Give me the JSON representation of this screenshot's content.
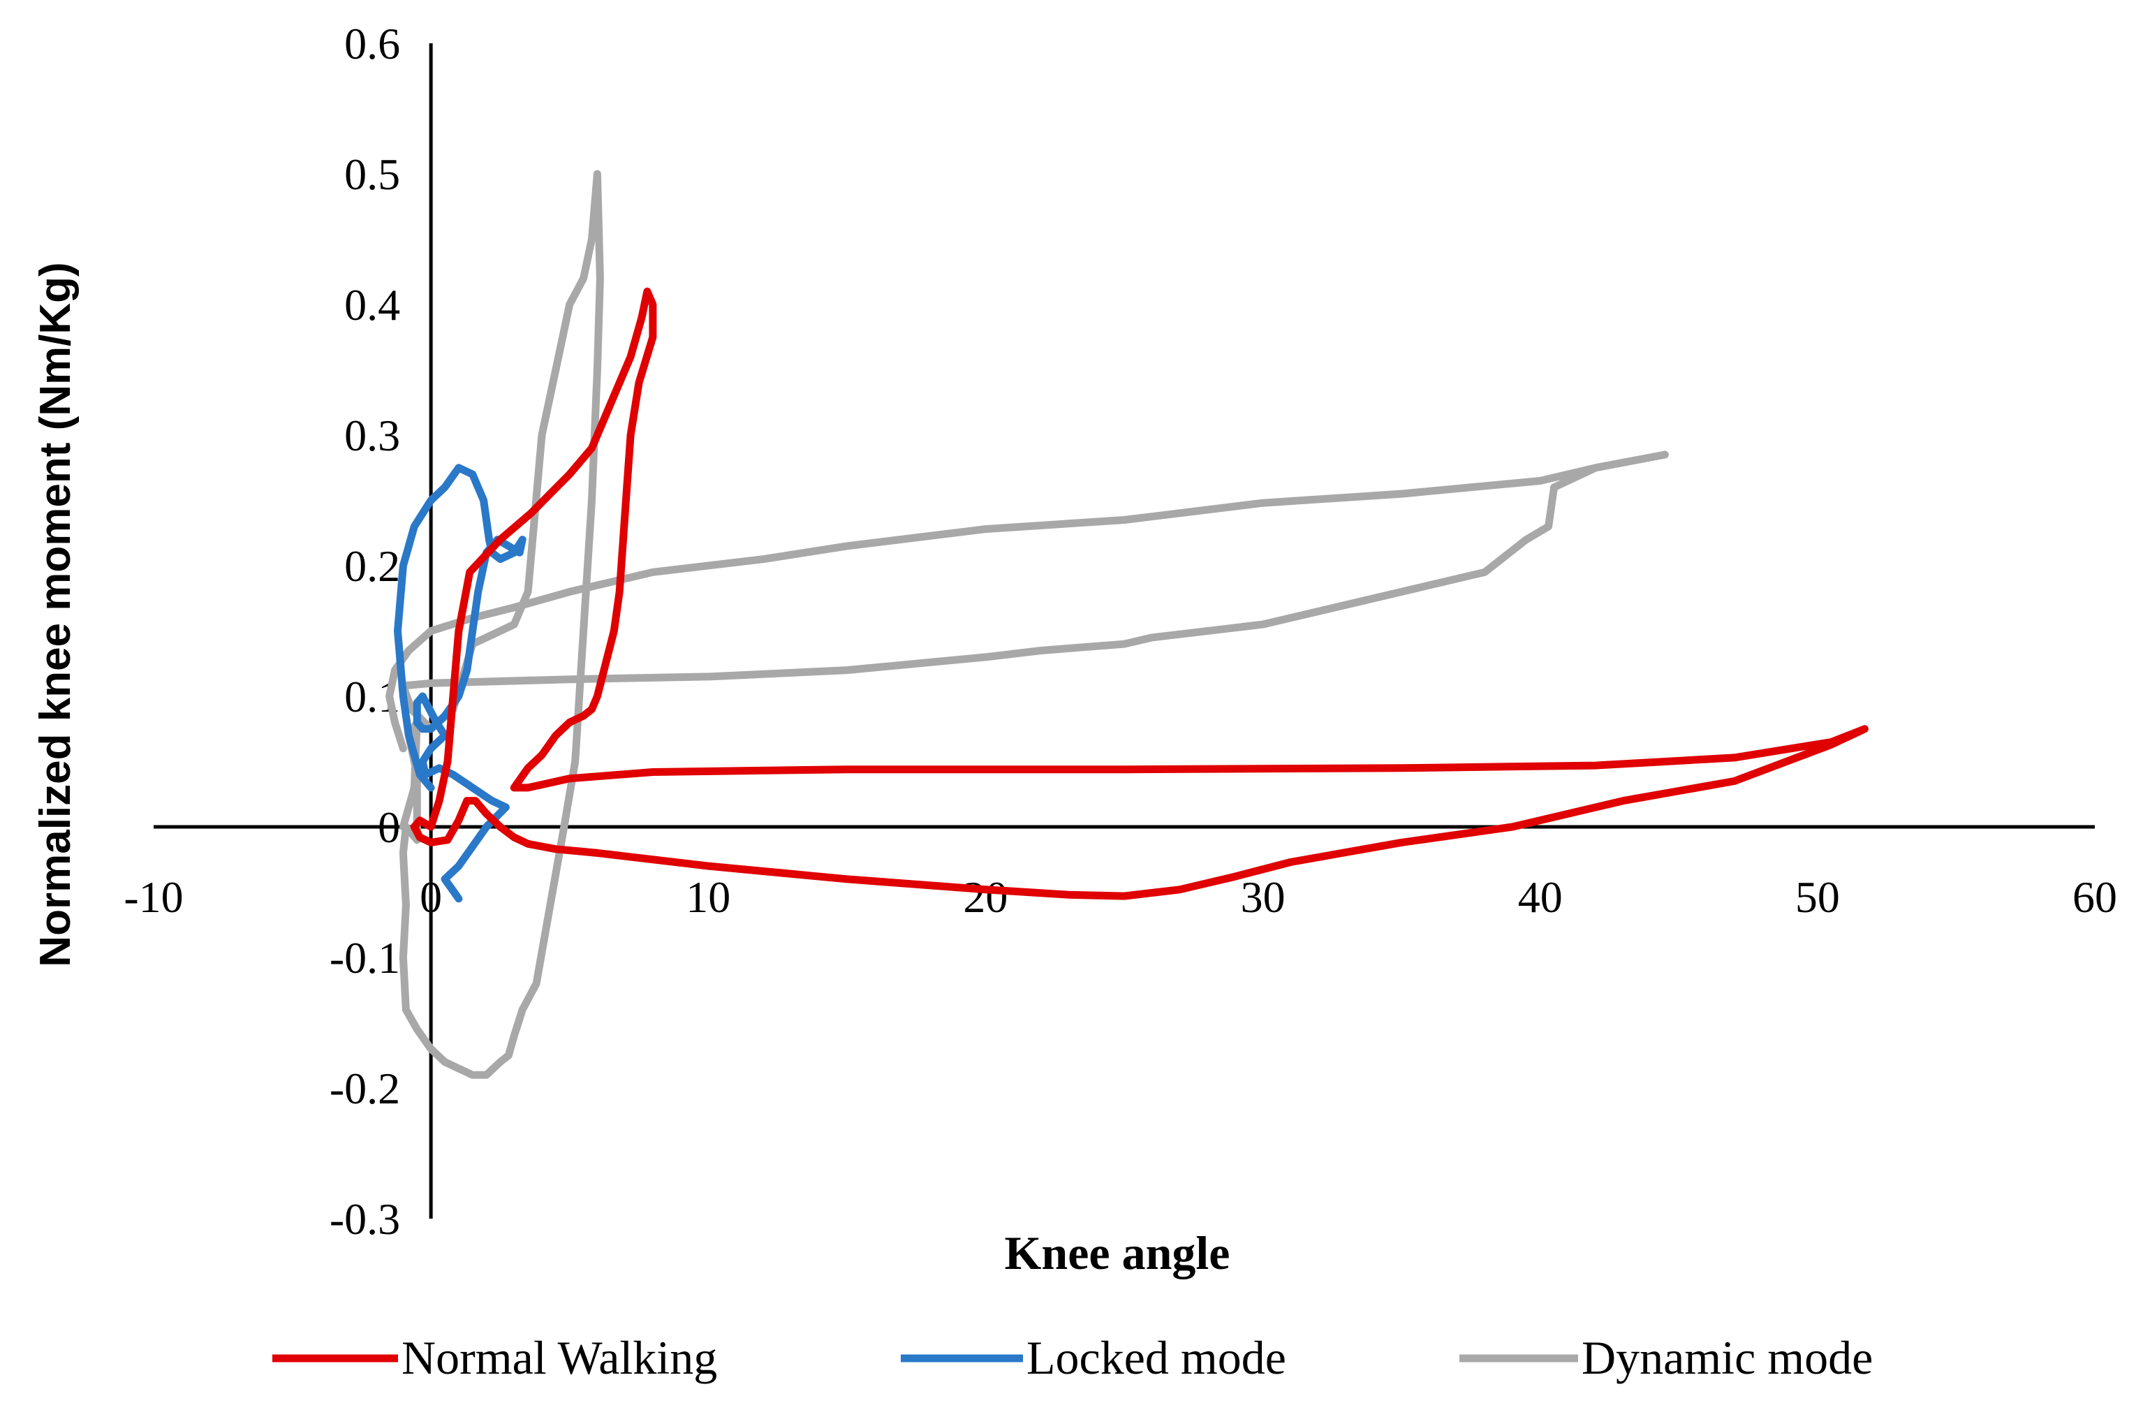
{
  "chart_data": {
    "type": "line",
    "title": "",
    "xlabel": "Knee angle",
    "ylabel": "Normalized knee moment (Nm/Kg)",
    "xlim": [
      -10,
      60
    ],
    "ylim": [
      -0.3,
      0.6
    ],
    "x_ticks": [
      "-10",
      "0",
      "10",
      "20",
      "30",
      "40",
      "50",
      "60"
    ],
    "y_ticks": [
      "-0.3",
      "-0.2",
      "-0.1",
      "0",
      "0.1",
      "0.2",
      "0.3",
      "0.4",
      "0.5",
      "0.6"
    ],
    "grid": false,
    "legend_position": "bottom",
    "series": [
      {
        "name": "Normal Walking",
        "color": "#e00000",
        "x": [
          0.0,
          0.3,
          0.6,
          0.8,
          1.0,
          1.4,
          2.5,
          3.6,
          4.3,
          5.0,
          5.8,
          6.5,
          7.2,
          7.6,
          7.8,
          8.0,
          8.0,
          7.5,
          7.2,
          7.0,
          6.8,
          6.6,
          6.0,
          5.8,
          5.5,
          5.0,
          4.5,
          4.0,
          3.5,
          3.0,
          3.5,
          5.0,
          8.0,
          15.0,
          25.0,
          35.0,
          42.0,
          47.0,
          50.5,
          51.7,
          50.5,
          47.0,
          43.0,
          39.0,
          35.0,
          31.0,
          29.0,
          27.0,
          25.0,
          23.0,
          20.0,
          15.0,
          10.0,
          6.0,
          4.5,
          3.5,
          3.0,
          2.5,
          2.0,
          1.6,
          1.3,
          1.0,
          0.6,
          0.0,
          -0.4,
          -0.6,
          -0.4,
          0.0
        ],
        "y": [
          0.0,
          0.02,
          0.05,
          0.1,
          0.15,
          0.195,
          0.22,
          0.24,
          0.255,
          0.27,
          0.29,
          0.325,
          0.36,
          0.39,
          0.41,
          0.4,
          0.375,
          0.34,
          0.3,
          0.24,
          0.18,
          0.15,
          0.1,
          0.09,
          0.085,
          0.08,
          0.07,
          0.055,
          0.045,
          0.03,
          0.03,
          0.037,
          0.042,
          0.044,
          0.044,
          0.045,
          0.047,
          0.053,
          0.065,
          0.075,
          0.063,
          0.035,
          0.02,
          0.0,
          -0.012,
          -0.027,
          -0.038,
          -0.048,
          -0.053,
          -0.052,
          -0.048,
          -0.04,
          -0.03,
          -0.02,
          -0.017,
          -0.013,
          -0.008,
          0.0,
          0.01,
          0.02,
          0.02,
          0.005,
          -0.01,
          -0.012,
          -0.008,
          0.0,
          0.005,
          0.0
        ]
      },
      {
        "name": "Locked mode",
        "color": "#2a78c8",
        "x": [
          0.0,
          -0.4,
          -0.8,
          -1.0,
          -1.2,
          -1.0,
          -0.6,
          0.0,
          0.5,
          1.0,
          1.5,
          1.9,
          2.1,
          2.2,
          2.5,
          3.0,
          3.3,
          3.2,
          2.8,
          2.4,
          2.0,
          1.7,
          1.5,
          1.3,
          1.0,
          0.5,
          0.0,
          -0.3,
          -0.5,
          -0.5,
          -0.3,
          0.2,
          0.5,
          0.0,
          -0.3,
          -0.2,
          0.3,
          0.8,
          1.5,
          2.2,
          2.7,
          2.0,
          1.0,
          0.5,
          1.0
        ],
        "y": [
          0.03,
          0.04,
          0.07,
          0.1,
          0.15,
          0.2,
          0.23,
          0.25,
          0.26,
          0.275,
          0.27,
          0.25,
          0.22,
          0.21,
          0.205,
          0.21,
          0.22,
          0.21,
          0.215,
          0.22,
          0.21,
          0.18,
          0.15,
          0.12,
          0.1,
          0.085,
          0.075,
          0.075,
          0.08,
          0.095,
          0.1,
          0.08,
          0.07,
          0.06,
          0.05,
          0.04,
          0.045,
          0.04,
          0.03,
          0.02,
          0.015,
          0.0,
          -0.03,
          -0.04,
          -0.055
        ]
      },
      {
        "name": "Dynamic mode",
        "color": "#a8a8a8",
        "x": [
          -1.0,
          -1.3,
          -1.5,
          -1.3,
          -0.8,
          0.0,
          1.5,
          3.0,
          5.0,
          8.0,
          12.0,
          15.0,
          20.0,
          25.0,
          30.0,
          35.0,
          40.0,
          42.0,
          44.5,
          42.0,
          40.5,
          40.3,
          39.5,
          38.0,
          35.0,
          30.0,
          26.0,
          25.0,
          22.0,
          20.0,
          15.0,
          10.0,
          5.0,
          0.0,
          -1.0,
          -0.7,
          0.0,
          0.8,
          1.5,
          2.5,
          3.0,
          3.5,
          4.0,
          5.0,
          5.5,
          5.8,
          6.0,
          6.1,
          6.0,
          5.8,
          5.5,
          5.2,
          4.8,
          4.3,
          3.8,
          3.3,
          3.0,
          2.8,
          2.5,
          2.0,
          1.5,
          1.0,
          0.5,
          0.0,
          -0.5,
          -0.9,
          -1.0,
          -0.9,
          -1.0,
          -0.9,
          -0.5,
          -0.5,
          -0.8,
          -0.5,
          -0.6,
          -1.0
        ],
        "y": [
          0.06,
          0.08,
          0.1,
          0.12,
          0.135,
          0.15,
          0.16,
          0.168,
          0.18,
          0.195,
          0.205,
          0.215,
          0.228,
          0.235,
          0.248,
          0.255,
          0.265,
          0.275,
          0.285,
          0.275,
          0.26,
          0.23,
          0.22,
          0.195,
          0.18,
          0.155,
          0.145,
          0.14,
          0.135,
          0.13,
          0.12,
          0.115,
          0.113,
          0.11,
          0.108,
          0.09,
          0.075,
          0.09,
          0.14,
          0.15,
          0.155,
          0.18,
          0.3,
          0.4,
          0.42,
          0.45,
          0.5,
          0.42,
          0.35,
          0.25,
          0.15,
          0.05,
          0.0,
          -0.06,
          -0.12,
          -0.14,
          -0.16,
          -0.175,
          -0.18,
          -0.19,
          -0.19,
          -0.185,
          -0.18,
          -0.17,
          -0.155,
          -0.14,
          -0.1,
          -0.06,
          -0.02,
          0.0,
          -0.01,
          0.04,
          0.07,
          0.08,
          0.03,
          0.0
        ]
      }
    ]
  }
}
